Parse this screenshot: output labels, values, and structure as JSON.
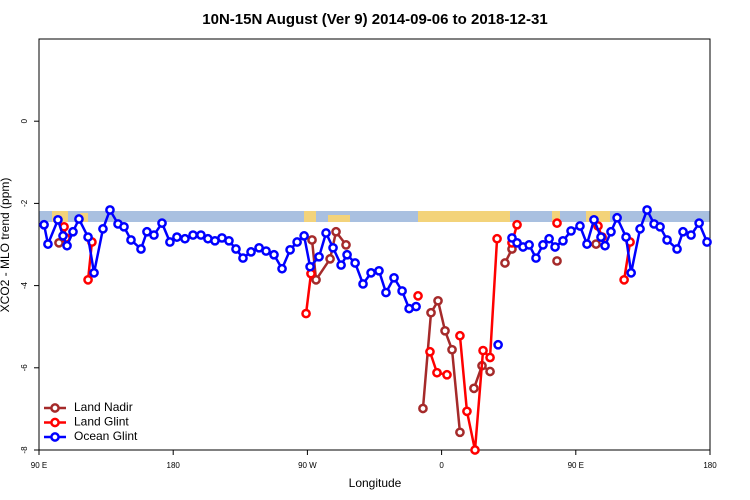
{
  "chart_data": {
    "type": "line",
    "title": "10N-15N August (Ver 9)   2014-09-06 to 2018-12-31",
    "x_label": "Longitude",
    "y_label": "XCO2 - MLO trend (ppm)",
    "xlim": [
      90,
      540
    ],
    "xticks": [
      {
        "value": 90,
        "label": "90 E"
      },
      180,
      {
        "value": 270,
        "label": "90 W"
      },
      {
        "value": 360,
        "label": "0"
      },
      {
        "value": 450,
        "label": "90 E"
      },
      {
        "value": 540,
        "label": "180"
      }
    ],
    "ylim": [
      -8,
      2
    ],
    "yticks": [
      0,
      -2,
      -4,
      -6,
      -8
    ],
    "legend": "bottom-left",
    "series": [
      {
        "name": "Land Nadir",
        "color": "#a52a2a",
        "x": [
          103.4,
          106.8,
          190,
          273.1,
          275.8,
          285.2,
          289.2,
          295.9,
          320,
          347.5,
          352.9,
          357.6,
          362.3,
          367.0,
          372.3,
          377,
          381.7,
          387.1,
          392.5,
          397,
          402.5,
          407.2,
          420,
          437.4,
          450,
          463.6,
          467.6
        ],
        "values": [
          -2.96,
          -2.82,
          null,
          -2.89,
          -3.86,
          -3.35,
          -2.69,
          -3.01,
          null,
          -6.99,
          -4.66,
          -4.37,
          -5.1,
          -5.56,
          -7.57,
          null,
          -6.5,
          -5.95,
          -6.09,
          null,
          -3.45,
          -3.11,
          null,
          -3.4,
          null,
          -2.99,
          -2.82
        ]
      },
      {
        "name": "Land Glint",
        "color": "#ff0000",
        "x": [
          106.8,
          108.1,
          115,
          122.9,
          125.5,
          200,
          269.1,
          272.4,
          310,
          344.2,
          348,
          352.2,
          356.9,
          363.6,
          368,
          372.3,
          377.0,
          382.4,
          387.8,
          392.5,
          397.2,
          402,
          407.2,
          410.6,
          425,
          437.4,
          450,
          464.9,
          467.6,
          475,
          482.4,
          486.4
        ],
        "values": [
          -2.57,
          -2.84,
          null,
          -3.86,
          -2.94,
          null,
          -4.68,
          -3.71,
          null,
          -4.25,
          null,
          -5.61,
          -6.12,
          -6.17,
          null,
          -5.22,
          -7.06,
          -8.0,
          -5.58,
          -5.75,
          -2.86,
          null,
          -2.96,
          -2.52,
          null,
          -2.48,
          null,
          -2.55,
          -2.82,
          null,
          -3.86,
          -2.94
        ]
      },
      {
        "name": "Ocean Glint",
        "color": "#0000ff",
        "x": [
          93.4,
          96.0,
          102.7,
          106.1,
          108.8,
          112.8,
          116.8,
          122.9,
          126.9,
          132.9,
          137.6,
          143.0,
          147.0,
          151.7,
          158.4,
          162.4,
          167.1,
          172.5,
          177.8,
          182.5,
          187.9,
          193.3,
          198.6,
          203.3,
          208.0,
          212.7,
          217.4,
          222.1,
          226.8,
          232.2,
          237.6,
          242.3,
          247.6,
          253.0,
          258.4,
          263.1,
          267.8,
          271.8,
          277.8,
          282.5,
          287.2,
          292.6,
          296.6,
          302.0,
          307.3,
          312.7,
          318.0,
          322.7,
          328.1,
          333.5,
          338.2,
          342.9,
          370.4,
          397.9,
          402.6,
          407.2,
          410.6,
          414.6,
          418.7,
          423.3,
          428.0,
          432.1,
          436.1,
          441.4,
          446.8,
          452.8,
          457.5,
          462.2,
          466.9,
          469.6,
          473.6,
          477.7,
          483.7,
          487.1,
          493.1,
          497.8,
          502.5,
          506.5,
          511.2,
          517.9,
          521.9,
          527.3,
          532.7,
          538.0
        ],
        "values": [
          -2.52,
          -2.99,
          -2.4,
          -2.79,
          -3.03,
          -2.69,
          -2.38,
          -2.82,
          -3.69,
          -2.62,
          -2.16,
          -2.5,
          -2.57,
          -2.89,
          -3.11,
          -2.69,
          -2.77,
          -2.48,
          -2.94,
          -2.82,
          -2.86,
          -2.77,
          -2.77,
          -2.86,
          -2.91,
          -2.84,
          -2.91,
          -3.11,
          -3.33,
          -3.18,
          -3.08,
          -3.16,
          -3.25,
          -3.59,
          -3.13,
          -2.94,
          -2.79,
          -3.54,
          -3.3,
          -2.72,
          -3.08,
          -3.5,
          -3.25,
          -3.45,
          -3.96,
          -3.69,
          -3.64,
          -4.17,
          -3.81,
          -4.13,
          -4.56,
          -4.51,
          null,
          -5.44,
          null,
          -2.84,
          -2.96,
          -3.06,
          -3.01,
          -3.33,
          -3.01,
          -2.86,
          -3.06,
          -2.91,
          -2.67,
          -2.55,
          -2.99,
          -2.4,
          -2.82,
          -3.03,
          -2.69,
          -2.35,
          -2.82,
          -3.69,
          -2.62,
          -2.16,
          -2.5,
          -2.57,
          -2.89,
          -3.11,
          -2.69,
          -2.77,
          -2.48,
          -2.94
        ]
      }
    ]
  }
}
